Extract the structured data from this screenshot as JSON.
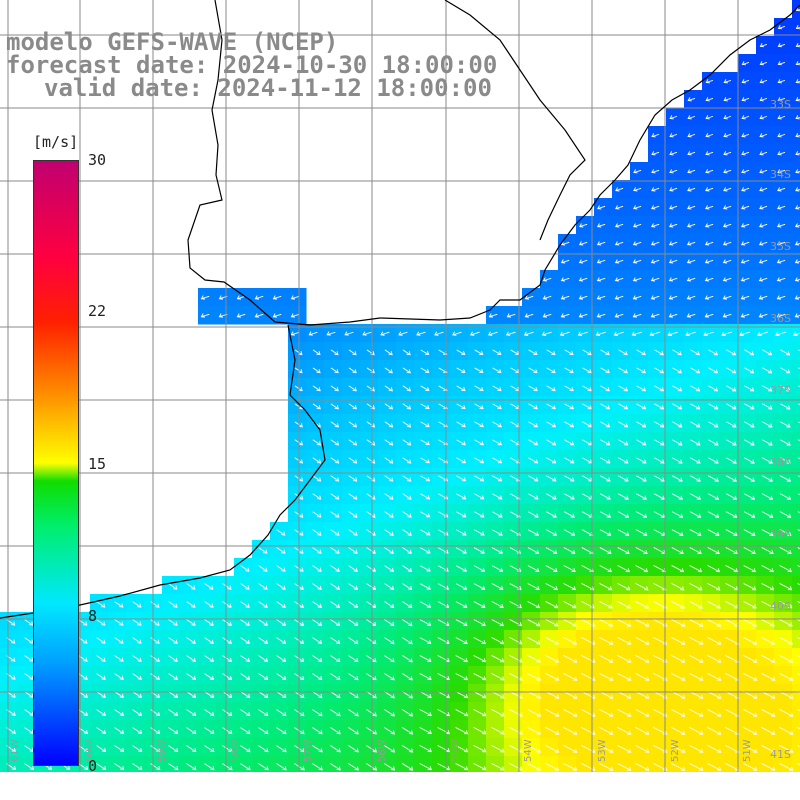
{
  "title": {
    "model": "modelo GEFS-WAVE (NCEP)",
    "forecast": "forecast date: 2024-10-30 18:00:00",
    "valid": "valid date: 2024-11-12 18:00:00"
  },
  "colorbar": {
    "unit": "[m/s]",
    "ticks": [
      "30",
      "22",
      "15",
      "8",
      "0"
    ],
    "tick_values": [
      30,
      22,
      15,
      8,
      0
    ],
    "range": [
      0,
      30
    ],
    "colors": [
      "#0000ff",
      "#00a0ff",
      "#00e8ff",
      "#00ee66",
      "#10dd00",
      "#ffff00",
      "#ff8800",
      "#ff2000",
      "#ff0040",
      "#c00070"
    ]
  },
  "latitude_labels": [
    "33S",
    "34S",
    "35S",
    "36S",
    "37S",
    "38S",
    "39S",
    "40S",
    "41S"
  ],
  "longitude_labels": [
    "61W",
    "60W",
    "59W",
    "58W",
    "57W",
    "56W",
    "55W",
    "54W",
    "53W",
    "52W",
    "51W"
  ],
  "map": {
    "variable": "wind speed",
    "field_colors": {
      "land": "#ffffff",
      "coast": "#000000",
      "grid": "#808080",
      "arrows": "#ffffff"
    }
  }
}
